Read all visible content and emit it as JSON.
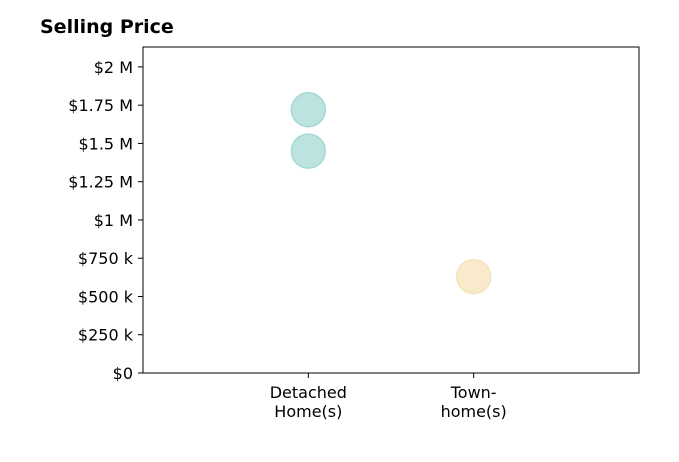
{
  "chart_data": {
    "type": "scatter",
    "title": "Selling Price",
    "xlabel": "",
    "ylabel": "",
    "categories": [
      [
        "Detached",
        "Home(s)"
      ],
      [
        "Town-",
        "home(s)"
      ]
    ],
    "ylim": [
      0,
      2130000
    ],
    "xlim": [
      -1,
      2
    ],
    "yticks": [
      {
        "value": 0,
        "label": "$0"
      },
      {
        "value": 250000,
        "label": "$250 k"
      },
      {
        "value": 500000,
        "label": "$500 k"
      },
      {
        "value": 750000,
        "label": "$750 k"
      },
      {
        "value": 1000000,
        "label": "$1 M"
      },
      {
        "value": 1250000,
        "label": "$1.25 M"
      },
      {
        "value": 1500000,
        "label": "$1.5 M"
      },
      {
        "value": 1750000,
        "label": "$1.75 M"
      },
      {
        "value": 2000000,
        "label": "$2 M"
      }
    ],
    "grid": false,
    "points": [
      {
        "category_index": 0,
        "y": 1720000,
        "color": "#a6d9d4"
      },
      {
        "category_index": 0,
        "y": 1450000,
        "color": "#a6d9d4"
      },
      {
        "category_index": 1,
        "y": 630000,
        "color": "#f5e3b8"
      }
    ],
    "marker_opacity": 0.75
  }
}
